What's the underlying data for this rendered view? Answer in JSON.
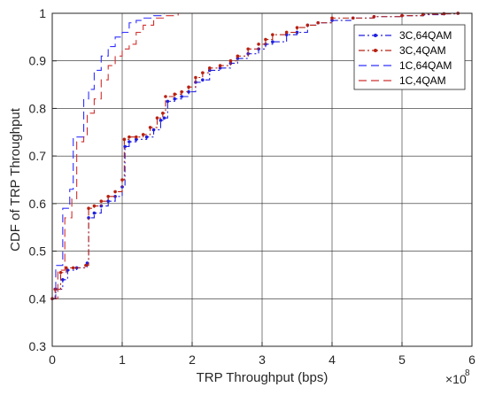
{
  "chart_data": {
    "type": "line",
    "title": "",
    "xlabel": "TRP Throughput (bps)",
    "ylabel": "CDF of TRP Throughput",
    "x_multiplier_label": "×10",
    "x_multiplier_exponent": "8",
    "xlim": [
      0,
      6
    ],
    "ylim": [
      0.3,
      1
    ],
    "x_ticks": [
      "0",
      "1",
      "2",
      "3",
      "4",
      "5",
      "6"
    ],
    "y_ticks": [
      "0.3",
      "0.4",
      "0.5",
      "0.6",
      "0.7",
      "0.8",
      "0.9",
      "1"
    ],
    "grid": true,
    "legend_position": "top-right",
    "series": [
      {
        "name": "3C,64QAM",
        "color": "#1f1fe0",
        "style": "dashdot-dot",
        "points": [
          [
            0,
            0.4
          ],
          [
            0.05,
            0.42
          ],
          [
            0.15,
            0.44
          ],
          [
            0.22,
            0.46
          ],
          [
            0.35,
            0.465
          ],
          [
            0.5,
            0.475
          ],
          [
            0.52,
            0.57
          ],
          [
            0.6,
            0.58
          ],
          [
            0.7,
            0.595
          ],
          [
            0.8,
            0.605
          ],
          [
            0.9,
            0.615
          ],
          [
            1.0,
            0.635
          ],
          [
            1.04,
            0.72
          ],
          [
            1.1,
            0.73
          ],
          [
            1.2,
            0.735
          ],
          [
            1.35,
            0.74
          ],
          [
            1.45,
            0.755
          ],
          [
            1.55,
            0.775
          ],
          [
            1.6,
            0.78
          ],
          [
            1.65,
            0.815
          ],
          [
            1.75,
            0.82
          ],
          [
            1.85,
            0.825
          ],
          [
            1.95,
            0.835
          ],
          [
            2.05,
            0.855
          ],
          [
            2.15,
            0.86
          ],
          [
            2.25,
            0.88
          ],
          [
            2.4,
            0.885
          ],
          [
            2.55,
            0.895
          ],
          [
            2.65,
            0.905
          ],
          [
            2.8,
            0.915
          ],
          [
            2.95,
            0.925
          ],
          [
            3.05,
            0.935
          ],
          [
            3.15,
            0.94
          ],
          [
            3.35,
            0.955
          ],
          [
            3.5,
            0.96
          ],
          [
            3.65,
            0.975
          ],
          [
            3.8,
            0.98
          ],
          [
            4.0,
            0.985
          ],
          [
            4.3,
            0.99
          ],
          [
            4.6,
            0.993
          ],
          [
            5.0,
            0.995
          ],
          [
            5.3,
            0.997
          ],
          [
            5.6,
            0.999
          ],
          [
            5.8,
            1.0
          ]
        ]
      },
      {
        "name": "3C,4QAM",
        "color": "#b82010",
        "style": "dashdot-dot",
        "points": [
          [
            0,
            0.4
          ],
          [
            0.04,
            0.42
          ],
          [
            0.12,
            0.455
          ],
          [
            0.2,
            0.465
          ],
          [
            0.3,
            0.465
          ],
          [
            0.48,
            0.47
          ],
          [
            0.52,
            0.59
          ],
          [
            0.6,
            0.595
          ],
          [
            0.7,
            0.605
          ],
          [
            0.8,
            0.615
          ],
          [
            0.9,
            0.625
          ],
          [
            1.0,
            0.65
          ],
          [
            1.03,
            0.735
          ],
          [
            1.1,
            0.74
          ],
          [
            1.2,
            0.74
          ],
          [
            1.3,
            0.745
          ],
          [
            1.4,
            0.76
          ],
          [
            1.5,
            0.78
          ],
          [
            1.58,
            0.79
          ],
          [
            1.62,
            0.825
          ],
          [
            1.75,
            0.83
          ],
          [
            1.85,
            0.835
          ],
          [
            1.95,
            0.845
          ],
          [
            2.05,
            0.865
          ],
          [
            2.15,
            0.875
          ],
          [
            2.25,
            0.885
          ],
          [
            2.4,
            0.89
          ],
          [
            2.55,
            0.9
          ],
          [
            2.65,
            0.91
          ],
          [
            2.8,
            0.925
          ],
          [
            2.95,
            0.935
          ],
          [
            3.05,
            0.945
          ],
          [
            3.15,
            0.955
          ],
          [
            3.35,
            0.96
          ],
          [
            3.5,
            0.97
          ],
          [
            3.65,
            0.975
          ],
          [
            3.8,
            0.98
          ],
          [
            4.0,
            0.99
          ],
          [
            4.3,
            0.99
          ],
          [
            4.6,
            0.993
          ],
          [
            5.0,
            0.995
          ],
          [
            5.3,
            0.998
          ],
          [
            5.6,
            0.999
          ],
          [
            5.8,
            1.0
          ]
        ]
      },
      {
        "name": "1C,64QAM",
        "color": "#3030ff",
        "style": "dashed",
        "points": [
          [
            0,
            0.4
          ],
          [
            0.05,
            0.47
          ],
          [
            0.12,
            0.47
          ],
          [
            0.15,
            0.59
          ],
          [
            0.25,
            0.63
          ],
          [
            0.3,
            0.74
          ],
          [
            0.4,
            0.74
          ],
          [
            0.45,
            0.82
          ],
          [
            0.52,
            0.84
          ],
          [
            0.6,
            0.88
          ],
          [
            0.7,
            0.91
          ],
          [
            0.8,
            0.93
          ],
          [
            0.9,
            0.95
          ],
          [
            1.0,
            0.96
          ],
          [
            1.1,
            0.98
          ],
          [
            1.2,
            0.985
          ],
          [
            1.3,
            0.99
          ],
          [
            1.45,
            0.995
          ],
          [
            1.6,
            1.0
          ]
        ]
      },
      {
        "name": "1C,4QAM",
        "color": "#d03030",
        "style": "dashed",
        "points": [
          [
            0,
            0.4
          ],
          [
            0.08,
            0.46
          ],
          [
            0.15,
            0.46
          ],
          [
            0.18,
            0.57
          ],
          [
            0.28,
            0.61
          ],
          [
            0.35,
            0.73
          ],
          [
            0.45,
            0.74
          ],
          [
            0.5,
            0.79
          ],
          [
            0.6,
            0.82
          ],
          [
            0.7,
            0.86
          ],
          [
            0.8,
            0.89
          ],
          [
            0.9,
            0.91
          ],
          [
            1.0,
            0.925
          ],
          [
            1.1,
            0.935
          ],
          [
            1.2,
            0.96
          ],
          [
            1.3,
            0.975
          ],
          [
            1.45,
            0.99
          ],
          [
            1.6,
            0.995
          ],
          [
            1.8,
            1.0
          ]
        ]
      }
    ]
  }
}
